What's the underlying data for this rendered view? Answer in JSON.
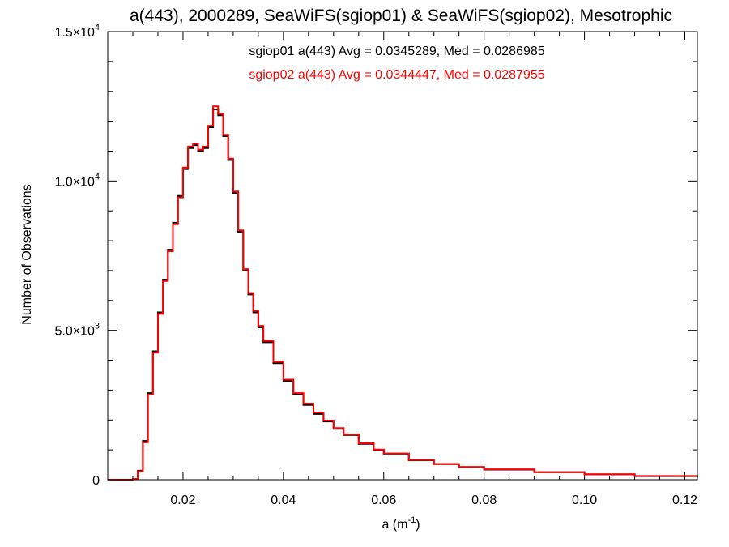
{
  "chart_data": {
    "type": "line",
    "step": true,
    "title": "a(443), 2000289, SeaWiFS(sgiop01) & SeaWiFS(sgiop02), Mesotrophic",
    "xlabel": {
      "base": "a (m",
      "sup": "-1",
      "tail": ")"
    },
    "ylabel": "Number of Observations",
    "xlim": [
      0.005,
      0.1225
    ],
    "ylim": [
      0,
      15000
    ],
    "x_ticks": [
      {
        "value": 0.02,
        "label": "0.02"
      },
      {
        "value": 0.04,
        "label": "0.04"
      },
      {
        "value": 0.06,
        "label": "0.06"
      },
      {
        "value": 0.08,
        "label": "0.08"
      },
      {
        "value": 0.1,
        "label": "0.10"
      },
      {
        "value": 0.12,
        "label": "0.12"
      }
    ],
    "y_ticks": [
      {
        "value": 0,
        "base": "0",
        "sup": ""
      },
      {
        "value": 5000,
        "base": "5.0×10",
        "sup": "3"
      },
      {
        "value": 10000,
        "base": "1.0×10",
        "sup": "4"
      },
      {
        "value": 15000,
        "base": "1.5×10",
        "sup": "4"
      }
    ],
    "annotations": [
      {
        "text": "sgiop01 a(443) Avg = 0.0345289, Med = 0.0286985",
        "color": "#000000"
      },
      {
        "text": "sgiop02 a(443) Avg = 0.0344447, Med = 0.0287955",
        "color": "#ff0000"
      }
    ],
    "colors": {
      "sgiop01": "#000000",
      "sgiop02": "#ff0000"
    },
    "series": [
      {
        "color": "#000000",
        "x": [
          0.005,
          0.01,
          0.011,
          0.012,
          0.013,
          0.014,
          0.015,
          0.016,
          0.017,
          0.018,
          0.019,
          0.02,
          0.021,
          0.022,
          0.023,
          0.024,
          0.025,
          0.026,
          0.027,
          0.028,
          0.029,
          0.03,
          0.031,
          0.032,
          0.033,
          0.034,
          0.035,
          0.036,
          0.038,
          0.04,
          0.042,
          0.044,
          0.046,
          0.048,
          0.05,
          0.052,
          0.055,
          0.058,
          0.06,
          0.065,
          0.07,
          0.075,
          0.08,
          0.09,
          0.1,
          0.11,
          0.1225
        ],
        "y": [
          0,
          20,
          300,
          1300,
          2900,
          4300,
          5600,
          6700,
          7700,
          8600,
          9500,
          10400,
          11100,
          11200,
          11000,
          11100,
          11800,
          12400,
          12200,
          11500,
          10700,
          9600,
          8300,
          7000,
          6200,
          5600,
          5100,
          4600,
          3900,
          3300,
          2850,
          2500,
          2200,
          1950,
          1700,
          1500,
          1200,
          1000,
          870,
          650,
          520,
          420,
          340,
          250,
          180,
          120,
          70
        ]
      },
      {
        "color": "#ff0000",
        "x": [
          0.005,
          0.01,
          0.011,
          0.012,
          0.013,
          0.014,
          0.015,
          0.016,
          0.017,
          0.018,
          0.019,
          0.02,
          0.021,
          0.022,
          0.023,
          0.024,
          0.025,
          0.026,
          0.027,
          0.028,
          0.029,
          0.03,
          0.031,
          0.032,
          0.033,
          0.034,
          0.035,
          0.036,
          0.038,
          0.04,
          0.042,
          0.044,
          0.046,
          0.048,
          0.05,
          0.052,
          0.055,
          0.058,
          0.06,
          0.065,
          0.07,
          0.075,
          0.08,
          0.09,
          0.1,
          0.11,
          0.1225
        ],
        "y": [
          0,
          20,
          280,
          1250,
          2850,
          4250,
          5550,
          6650,
          7650,
          8550,
          9450,
          10450,
          11150,
          11250,
          11050,
          11150,
          11850,
          12500,
          12250,
          11550,
          10750,
          9650,
          8350,
          7050,
          6250,
          5650,
          5150,
          4650,
          3950,
          3350,
          2900,
          2550,
          2250,
          1980,
          1730,
          1520,
          1220,
          1010,
          880,
          660,
          530,
          430,
          350,
          255,
          185,
          125,
          72
        ]
      }
    ]
  }
}
